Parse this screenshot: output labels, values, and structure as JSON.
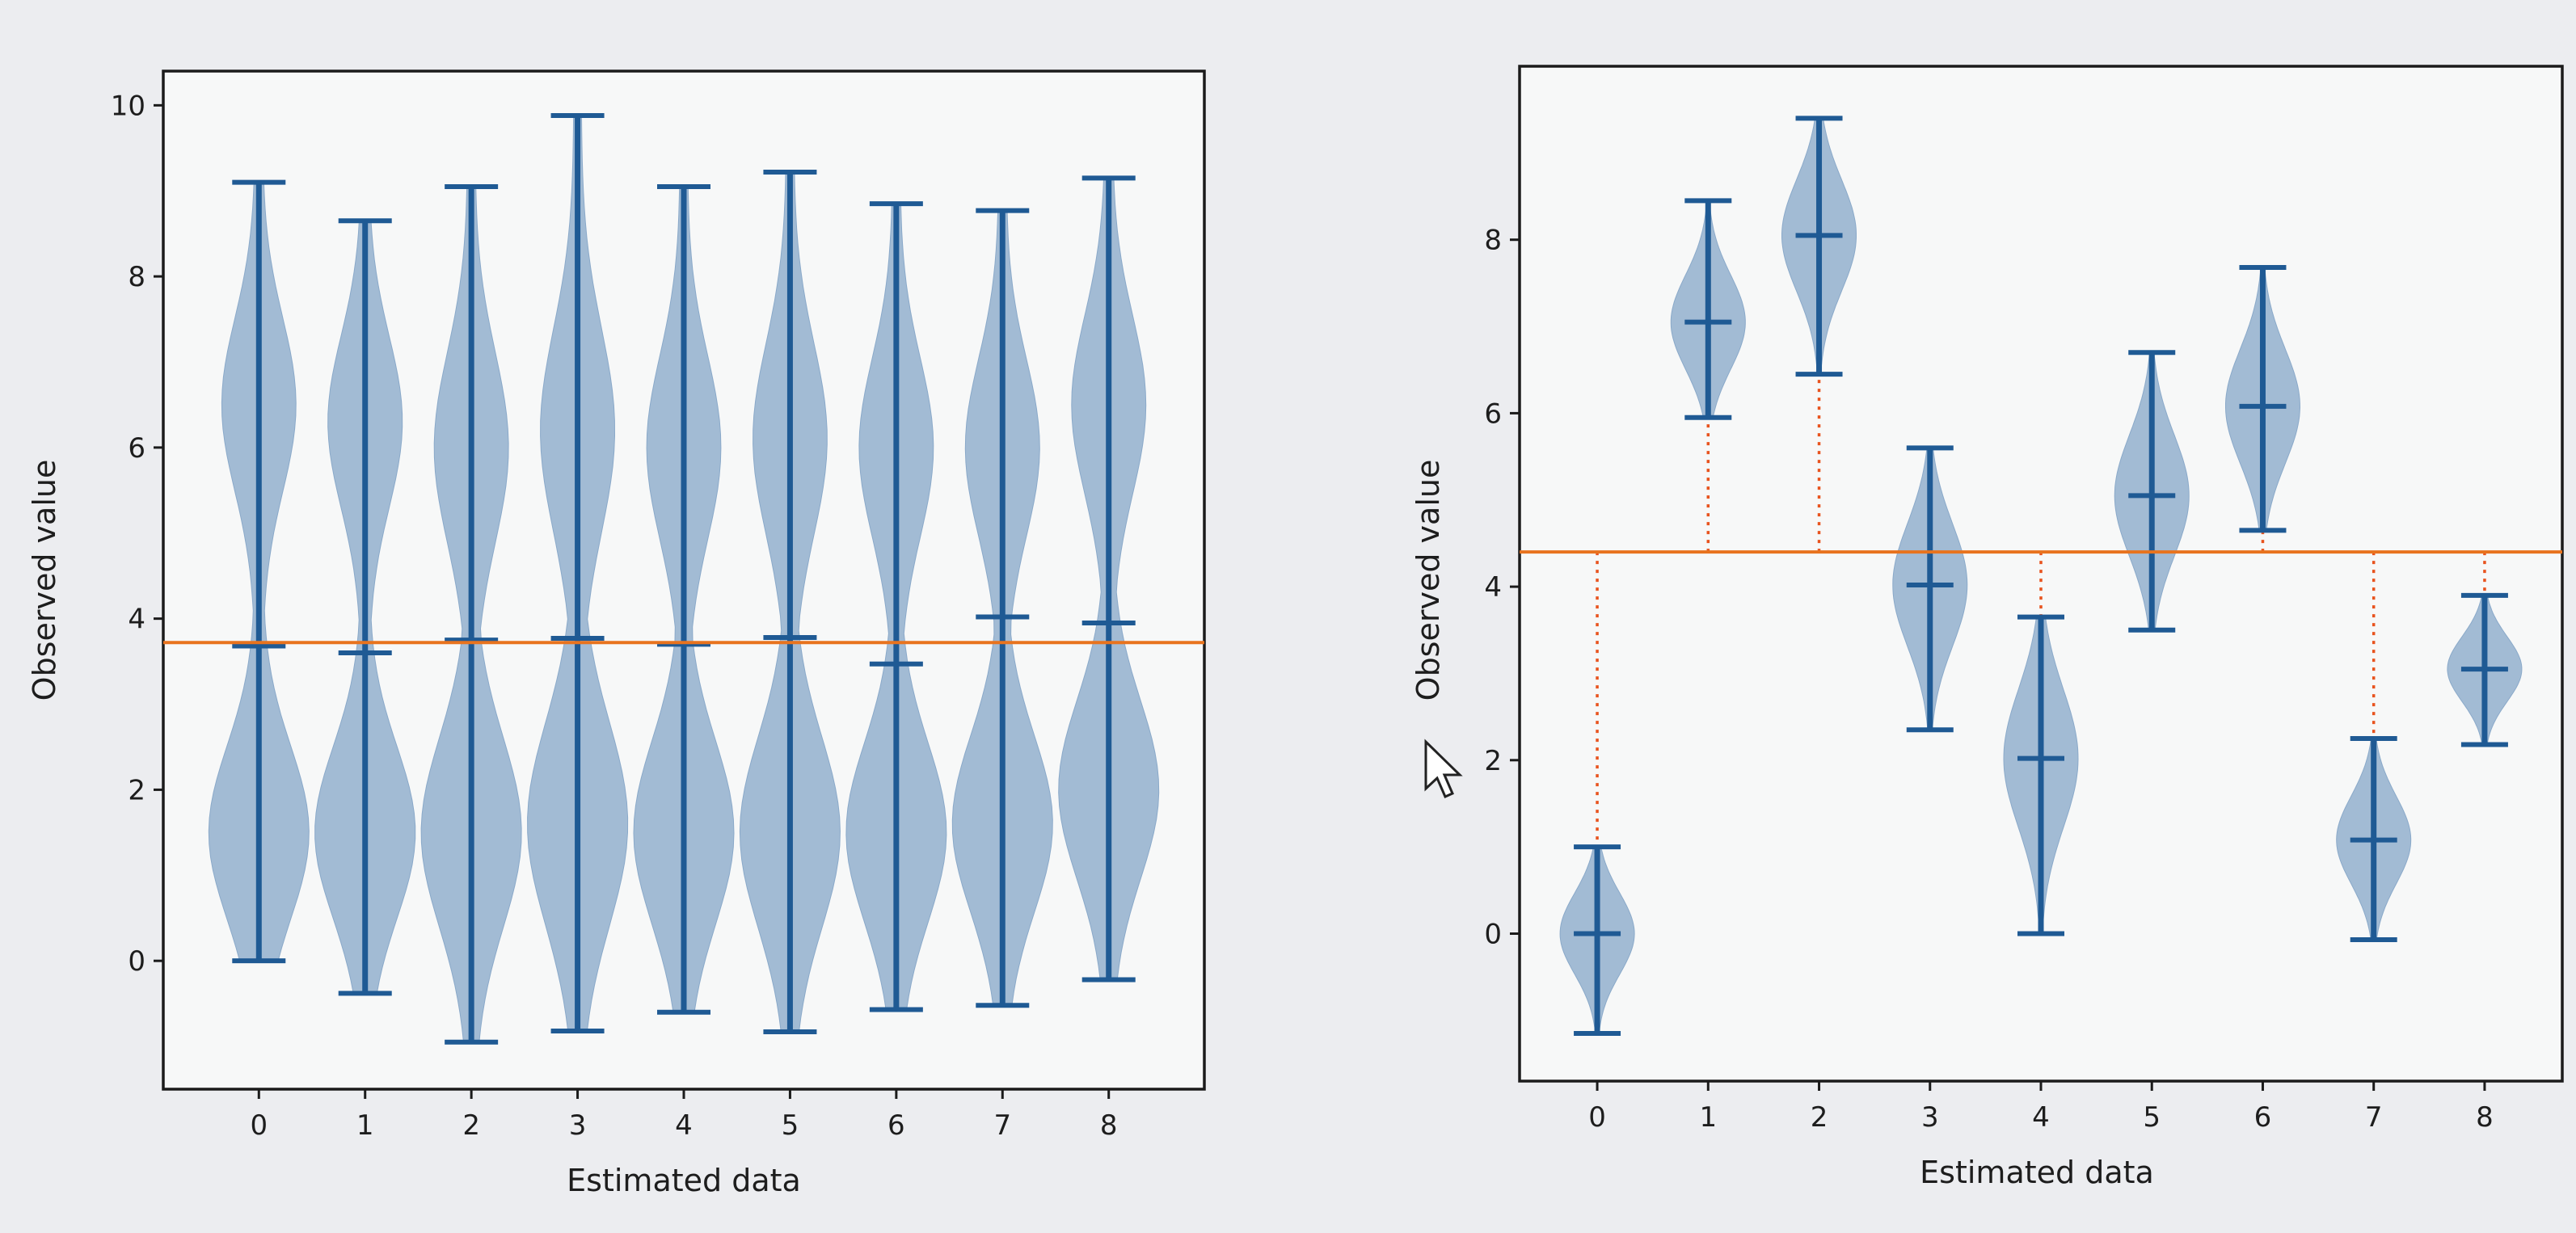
{
  "chart_data": [
    {
      "type": "violin",
      "xlabel": "Estimated data",
      "ylabel": "Observed value",
      "categories": [
        "0",
        "1",
        "2",
        "3",
        "4",
        "5",
        "6",
        "7",
        "8"
      ],
      "xlim": [
        -0.9,
        8.9
      ],
      "ylim": [
        -1.5,
        10.4
      ],
      "yticks": [
        0,
        2,
        4,
        6,
        8,
        10
      ],
      "reference_line": 3.72,
      "violins": [
        {
          "x": 0,
          "min": 0.0,
          "max": 9.1,
          "median": 3.68,
          "modes": [
            1.5,
            6.5
          ]
        },
        {
          "x": 1,
          "min": -0.38,
          "max": 8.65,
          "median": 3.6,
          "modes": [
            1.5,
            6.3
          ]
        },
        {
          "x": 2,
          "min": -0.95,
          "max": 9.05,
          "median": 3.75,
          "modes": [
            1.5,
            6.0
          ]
        },
        {
          "x": 3,
          "min": -0.82,
          "max": 9.88,
          "median": 3.77,
          "modes": [
            1.6,
            6.2
          ]
        },
        {
          "x": 4,
          "min": -0.6,
          "max": 9.05,
          "median": 3.7,
          "modes": [
            1.5,
            6.0
          ]
        },
        {
          "x": 5,
          "min": -0.83,
          "max": 9.22,
          "median": 3.78,
          "modes": [
            1.5,
            6.1
          ]
        },
        {
          "x": 6,
          "min": -0.57,
          "max": 8.85,
          "median": 3.47,
          "modes": [
            1.5,
            6.0
          ]
        },
        {
          "x": 7,
          "min": -0.52,
          "max": 8.77,
          "median": 4.02,
          "modes": [
            1.6,
            6.0
          ]
        },
        {
          "x": 8,
          "min": -0.22,
          "max": 9.15,
          "median": 3.95,
          "modes": [
            2.0,
            6.5
          ]
        }
      ]
    },
    {
      "type": "violin",
      "xlabel": "Estimated data",
      "ylabel": "Observed value",
      "categories": [
        "0",
        "1",
        "2",
        "3",
        "4",
        "5",
        "6",
        "7",
        "8"
      ],
      "xlim": [
        -0.7,
        8.7
      ],
      "ylim": [
        -1.7,
        10.0
      ],
      "yticks": [
        0,
        2,
        4,
        6,
        8
      ],
      "reference_line": 4.4,
      "violins": [
        {
          "x": 0,
          "min": -1.15,
          "max": 1.0,
          "median": 0.0
        },
        {
          "x": 1,
          "min": 5.95,
          "max": 8.45,
          "median": 7.05
        },
        {
          "x": 2,
          "min": 6.45,
          "max": 9.4,
          "median": 8.05
        },
        {
          "x": 3,
          "min": 2.35,
          "max": 5.6,
          "median": 4.02
        },
        {
          "x": 4,
          "min": 0.0,
          "max": 3.65,
          "median": 2.02
        },
        {
          "x": 5,
          "min": 3.5,
          "max": 6.7,
          "median": 5.05
        },
        {
          "x": 6,
          "min": 4.65,
          "max": 7.68,
          "median": 6.08
        },
        {
          "x": 7,
          "min": -0.07,
          "max": 2.25,
          "median": 1.08
        },
        {
          "x": 8,
          "min": 2.18,
          "max": 3.9,
          "median": 3.05
        }
      ]
    }
  ]
}
